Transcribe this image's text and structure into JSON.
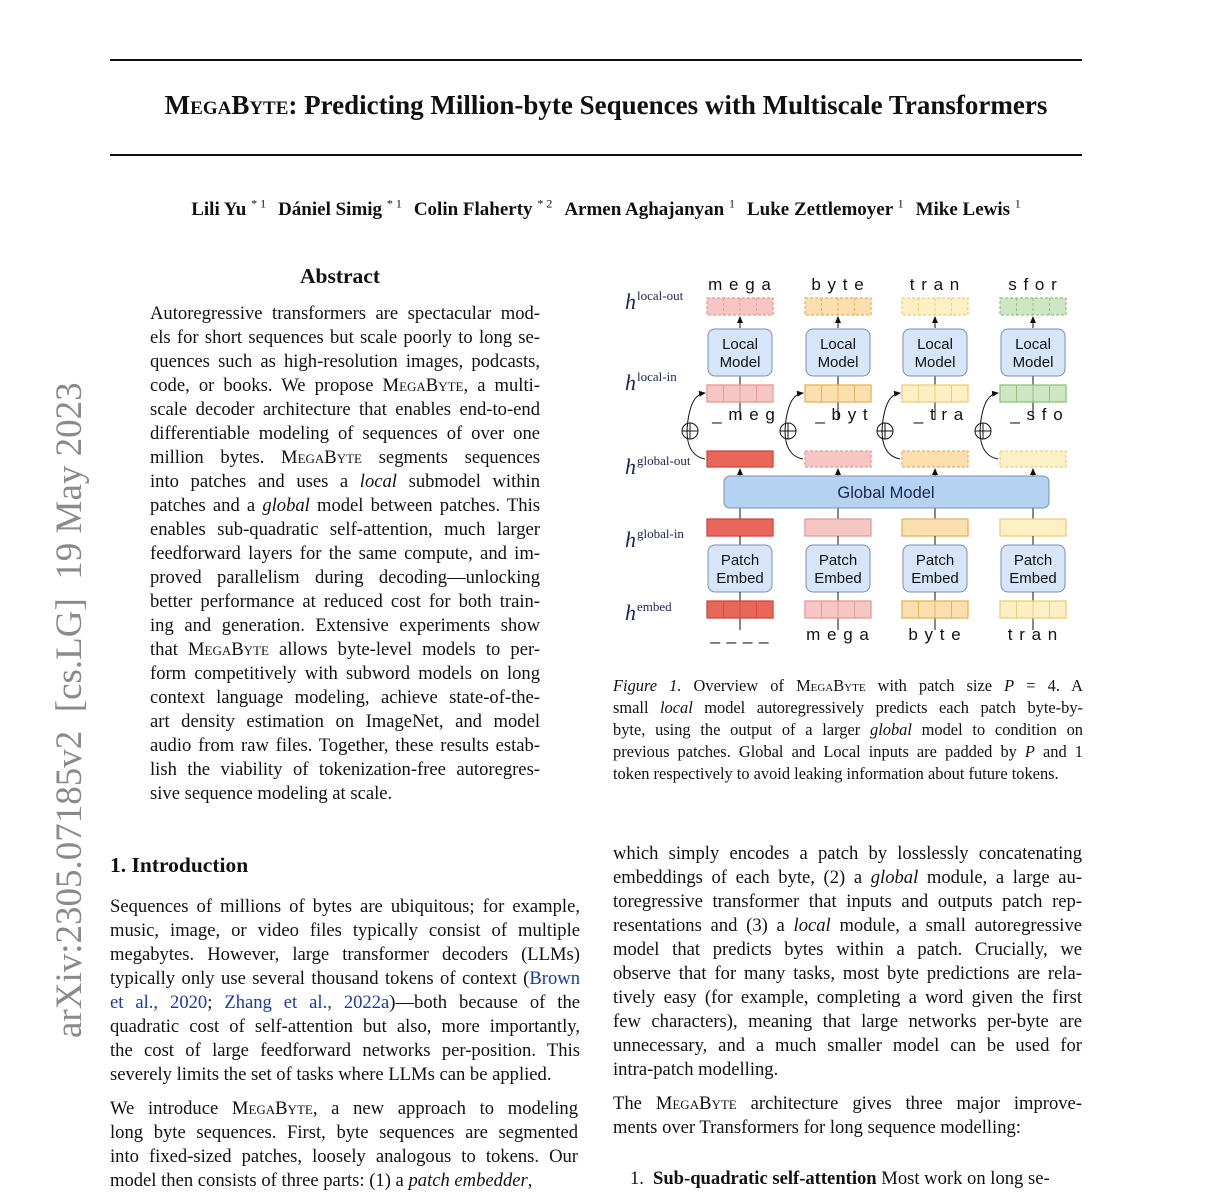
{
  "title": [
    {
      "sc": "MegaByte"
    },
    ": Predicting Million-byte Sequences with Multiscale Transformers"
  ],
  "authors": [
    {
      "name": "Lili Yu",
      "aff": "* 1"
    },
    {
      "name": "Dániel Simig",
      "aff": "* 1"
    },
    {
      "name": "Colin Flaherty",
      "aff": "* 2"
    },
    {
      "name": "Armen Aghajanyan",
      "aff": "1"
    },
    {
      "name": "Luke Zettlemoyer",
      "aff": "1"
    },
    {
      "name": "Mike Lewis",
      "aff": "1"
    }
  ],
  "arxiv_stamp": "arXiv:2305.07185v2  [cs.LG]  19 May 2023",
  "abstract": {
    "heading": "Abstract",
    "lines": [
      [
        "Autoregressive transformers are spectacular mod-"
      ],
      [
        "els for short sequences but scale poorly to long se-"
      ],
      [
        "quences such as high-resolution images, podcasts,"
      ],
      [
        "code, or books. We propose ",
        {
          "sc": "MegaByte"
        },
        ", a multi-"
      ],
      [
        "scale decoder architecture that enables end-to-end"
      ],
      [
        "differentiable modeling of sequences of over one"
      ],
      [
        "million bytes. ",
        {
          "sc": "MegaByte"
        },
        " segments sequences"
      ],
      [
        "into patches and uses a ",
        {
          "i": "local"
        },
        " submodel within"
      ],
      [
        "patches and a ",
        {
          "i": "global"
        },
        " model between patches. This"
      ],
      [
        "enables sub-quadratic self-attention, much larger"
      ],
      [
        "feedforward layers for the same compute, and im-"
      ],
      [
        "proved parallelism during decoding—unlocking"
      ],
      [
        "better performance at reduced cost for both train-"
      ],
      [
        "ing and generation. Extensive experiments show"
      ],
      [
        "that ",
        {
          "sc": "MegaByte"
        },
        " allows byte-level models to per-"
      ],
      [
        "form competitively with subword models on long"
      ],
      [
        "context language modeling, achieve state-of-the-"
      ],
      [
        "art density estimation on ImageNet, and model"
      ],
      [
        "audio from raw files. Together, these results estab-"
      ],
      [
        "lish the viability of tokenization-free autoregres-"
      ],
      [
        "sive sequence modeling at scale."
      ]
    ]
  },
  "intro": {
    "heading": "1. Introduction",
    "para1": [
      [
        "Sequences of millions of bytes are ubiquitous; for example,"
      ],
      [
        "music, image, or video files typically consist of multiple"
      ],
      [
        "megabytes. However, large transformer decoders (LLMs)"
      ],
      [
        "typically only use several thousand tokens of context (",
        {
          "a": "Brown"
        }
      ],
      [
        {
          "a": "et al., 2020"
        },
        "; ",
        {
          "a": "Zhang et al., 2022a"
        },
        ")—both because of the"
      ],
      [
        "quadratic cost of self-attention but also, more importantly,"
      ],
      [
        "the cost of large feedforward networks per-position. This"
      ],
      [
        "severely limits the set of tasks where LLMs can be applied."
      ]
    ],
    "para2": [
      [
        "We introduce ",
        {
          "sc": "MegaByte"
        },
        ", a new approach to modeling"
      ],
      [
        "long byte sequences. First, byte sequences are segmented"
      ],
      [
        "into fixed-sized patches, loosely analogous to tokens. Our"
      ],
      [
        "model then consists of three parts: (1) a ",
        {
          "i": "patch embedder"
        },
        ","
      ]
    ],
    "right1": [
      [
        "which simply encodes a patch by losslessly concatenating"
      ],
      [
        "embeddings of each byte, (2) a ",
        {
          "i": "global"
        },
        " module, a large au-"
      ],
      [
        "toregressive transformer that inputs and outputs patch rep-"
      ],
      [
        "resentations and (3) a ",
        {
          "i": "local"
        },
        " module, a small autoregressive"
      ],
      [
        "model that predicts bytes within a patch.  Crucially, we"
      ],
      [
        "observe that for many tasks, most byte predictions are rela-"
      ],
      [
        "tively easy (for example, completing a word given the first"
      ],
      [
        "few characters), meaning that large networks per-byte are"
      ],
      [
        "unnecessary, and a much smaller model can be used for"
      ],
      [
        "intra-patch modelling."
      ]
    ],
    "right2": [
      [
        "The ",
        {
          "sc": "MegaByte"
        },
        " architecture gives three major improve-"
      ],
      [
        "ments over Transformers for long sequence modelling:"
      ]
    ],
    "list": [
      {
        "num": "1.",
        "label": "Sub-quadratic self-attention",
        "text": " Most work on long se-"
      }
    ]
  },
  "figure": {
    "row_labels": {
      "local_out": "local-out",
      "local_in": "local-in",
      "global_out": "global-out",
      "global_in": "global-in",
      "embed": "embed",
      "h": "h"
    },
    "local_model_label": [
      "Local",
      "Model"
    ],
    "patch_embed_label": [
      "Patch",
      "Embed"
    ],
    "global_model_label": "Global Model",
    "columns": [
      {
        "out": "m e g a",
        "in": "_ m e g",
        "bottom": "_ _ _ _",
        "c_local": "#f6c6c4",
        "b_local": "#e49a96",
        "c_gout": "#e8665a",
        "b_gout": "#d2483c",
        "gout_dashed": false,
        "c_gin": "#e8665a",
        "b_gin": "#d2483c"
      },
      {
        "out": "b y t e",
        "in": "_  b y t",
        "bottom": "m e g a",
        "c_local": "#fbdfae",
        "b_local": "#e2b55a",
        "c_gout": "#f6c6c4",
        "b_gout": "#e49a96",
        "gout_dashed": true,
        "c_gin": "#f6c6c4",
        "b_gin": "#e49a96"
      },
      {
        "out": "t r a n",
        "in": "_  t r a",
        "bottom": "b y t e",
        "c_local": "#fdf0c4",
        "b_local": "#e9cf7a",
        "c_gout": "#fbdfae",
        "b_gout": "#e2b55a",
        "gout_dashed": true,
        "c_gin": "#fbdfae",
        "b_gin": "#e2b55a"
      },
      {
        "out": "s f o r",
        "in": "_  s f o",
        "bottom": "t r a n",
        "c_local": "#cfe6c5",
        "b_local": "#8fc27e",
        "c_gout": "#fdf0c4",
        "b_gout": "#e9cf7a",
        "gout_dashed": true,
        "c_gin": "#fdf0c4",
        "b_gin": "#e9cf7a"
      }
    ],
    "colors": {
      "box_fill": "#d6e6f8",
      "box_stroke": "#7a90b0",
      "global_fill": "#b5d2f3"
    },
    "caption": [
      [
        {
          "i": "Figure 1."
        },
        " Overview of ",
        {
          "sc": "MegaByte"
        },
        " with patch size ",
        {
          "i": "P"
        },
        " = 4.  A"
      ],
      [
        "small ",
        {
          "i": "local"
        },
        " model autoregressively predicts each patch byte-by-"
      ],
      [
        "byte, using the output of a larger ",
        {
          "i": "global"
        },
        " model to condition on"
      ],
      [
        "previous patches. Global and Local inputs are padded by ",
        {
          "i": "P"
        },
        " and 1"
      ],
      [
        "token respectively to avoid leaking information about future tokens."
      ]
    ]
  }
}
